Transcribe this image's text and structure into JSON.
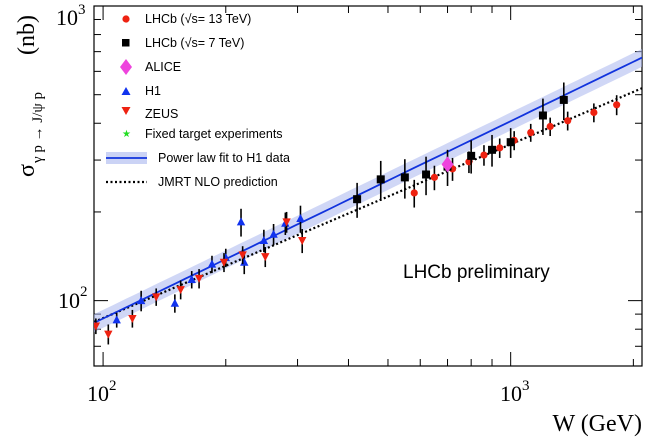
{
  "chart_data": {
    "type": "scatter",
    "xscale": "log",
    "yscale": "log",
    "xlim": [
      95,
      2100
    ],
    "ylim": [
      60,
      1000
    ],
    "xlabel": "W (GeV)",
    "ylabel_main": "σ",
    "ylabel_sub": "γ p → J/ψ p",
    "ylabel_unit": "(nb)",
    "x_ticks": [
      {
        "value": 100,
        "base": "10",
        "exp": "2"
      },
      {
        "value": 1000,
        "base": "10",
        "exp": "3"
      }
    ],
    "y_ticks": [
      {
        "value": 100,
        "base": "10",
        "exp": "2"
      },
      {
        "value": 1000,
        "base": "10",
        "exp": "3"
      }
    ],
    "annotation": "LHCb preliminary",
    "legend": [
      {
        "key": "lhcb13",
        "label": "LHCb (√s= 13 TeV)",
        "marker": "circle",
        "color": "#ee2211"
      },
      {
        "key": "lhcb7",
        "label": "LHCb (√s= 7 TeV)",
        "marker": "square",
        "color": "#000000"
      },
      {
        "key": "alice",
        "label": "ALICE",
        "marker": "diamond",
        "color": "#ee44dd"
      },
      {
        "key": "h1",
        "label": "H1",
        "marker": "triangle-up",
        "color": "#1133ee"
      },
      {
        "key": "zeus",
        "label": "ZEUS",
        "marker": "triangle-down",
        "color": "#ee2211"
      },
      {
        "key": "fixed",
        "label": "Fixed target experiments",
        "marker": "star",
        "color": "#22dd22"
      },
      {
        "key": "fit",
        "label": "Power law fit to H1 data",
        "marker": "band-line",
        "color": "#1133dd"
      },
      {
        "key": "jmrt",
        "label": "JMRT NLO prediction",
        "marker": "dotted-line",
        "color": "#000000"
      }
    ],
    "series": [
      {
        "name": "LHCb (√s= 13 TeV)",
        "marker": "circle",
        "color": "#ee2211",
        "points": [
          [
            580,
            232,
            25
          ],
          [
            650,
            262,
            25
          ],
          [
            720,
            280,
            25
          ],
          [
            790,
            296,
            25
          ],
          [
            860,
            312,
            25
          ],
          [
            940,
            330,
            25
          ],
          [
            1020,
            350,
            26
          ],
          [
            1120,
            372,
            26
          ],
          [
            1250,
            390,
            28
          ],
          [
            1380,
            408,
            30
          ],
          [
            1600,
            435,
            32
          ],
          [
            1820,
            462,
            36
          ]
        ]
      },
      {
        "name": "LHCb (√s= 7 TeV)",
        "marker": "square",
        "color": "#000000",
        "points": [
          [
            420,
            221,
            30
          ],
          [
            480,
            258,
            40
          ],
          [
            550,
            262,
            40
          ],
          [
            620,
            268,
            40
          ],
          [
            700,
            285,
            40
          ],
          [
            800,
            310,
            40
          ],
          [
            900,
            325,
            40
          ],
          [
            1000,
            345,
            40
          ],
          [
            1200,
            425,
            60
          ],
          [
            1350,
            480,
            70
          ]
        ]
      },
      {
        "name": "ALICE",
        "marker": "diamond",
        "color": "#ee44dd",
        "points": [
          [
            700,
            290,
            12
          ]
        ]
      },
      {
        "name": "H1",
        "marker": "triangle-up",
        "color": "#1133ee",
        "points": [
          [
            108,
            86,
            5
          ],
          [
            124,
            100,
            8
          ],
          [
            150,
            98,
            7
          ],
          [
            165,
            118,
            8
          ],
          [
            185,
            133,
            9
          ],
          [
            200,
            140,
            10
          ],
          [
            218,
            185,
            20
          ],
          [
            222,
            135,
            12
          ],
          [
            248,
            160,
            14
          ],
          [
            262,
            168,
            14
          ],
          [
            280,
            183,
            16
          ],
          [
            305,
            190,
            20
          ]
        ]
      },
      {
        "name": "ZEUS",
        "marker": "triangle-down",
        "color": "#ee2211",
        "points": [
          [
            96,
            82,
            5
          ],
          [
            103,
            77,
            6
          ],
          [
            118,
            87,
            6
          ],
          [
            135,
            103,
            7
          ],
          [
            155,
            109,
            8
          ],
          [
            172,
            119,
            9
          ],
          [
            198,
            135,
            10
          ],
          [
            220,
            143,
            10
          ],
          [
            250,
            141,
            11
          ],
          [
            282,
            185,
            15
          ],
          [
            308,
            160,
            15
          ]
        ]
      }
    ],
    "fit_line": {
      "name": "Power law fit to H1 data",
      "a": 81,
      "w0": 90,
      "exponent": 0.67,
      "band_low": 0.93,
      "band_high": 1.07
    },
    "jmrt_line": {
      "name": "JMRT NLO prediction",
      "a": 82,
      "w0": 90,
      "exponent": 0.59
    }
  }
}
